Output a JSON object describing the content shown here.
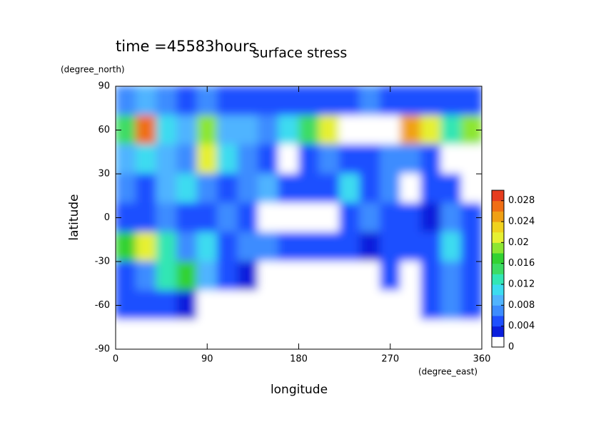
{
  "chart_data": {
    "type": "heatmap",
    "title": "surface stress",
    "subtitle": "time =45583hours",
    "x_label": "longitude",
    "y_label": "latitude",
    "x_unit": "(degree_east)",
    "y_unit": "(degree_north)",
    "xlim": [
      0,
      360
    ],
    "ylim": [
      -90,
      90
    ],
    "xticks": [
      0,
      90,
      180,
      270,
      360
    ],
    "yticks": [
      90,
      60,
      30,
      0,
      -30,
      -60,
      -90
    ],
    "x": [
      10,
      30,
      50,
      70,
      90,
      110,
      130,
      150,
      170,
      190,
      210,
      230,
      250,
      270,
      290,
      310,
      330,
      350
    ],
    "y": [
      80,
      60,
      40,
      20,
      0,
      -20,
      -40,
      -60,
      -80
    ],
    "z": [
      [
        0.006,
        0.008,
        0.006,
        0.005,
        0.006,
        0.005,
        0.005,
        0.004,
        0.004,
        0.004,
        0.005,
        0.005,
        0.006,
        0.005,
        0.005,
        0.005,
        0.004,
        0.004
      ],
      [
        0.014,
        0.026,
        0.01,
        0.008,
        0.018,
        0.008,
        0.008,
        0.006,
        0.01,
        0.014,
        0.02,
        0.034,
        0.034,
        0.034,
        0.024,
        0.02,
        0.012,
        0.018
      ],
      [
        0.008,
        0.01,
        0.008,
        0.006,
        0.02,
        0.01,
        0.006,
        0.004,
        0.001,
        0.005,
        0.006,
        0.005,
        0.004,
        0.006,
        0.006,
        0.005,
        0.001,
        0.001
      ],
      [
        0.006,
        0.004,
        0.008,
        0.01,
        0.006,
        0.005,
        0.006,
        0.008,
        0.004,
        0.005,
        0.004,
        0.01,
        0.004,
        0.006,
        0.001,
        0.004,
        0.004,
        0.001
      ],
      [
        0.004,
        0.005,
        0.006,
        0.004,
        0.005,
        0.006,
        0.004,
        0.001,
        0.001,
        0.001,
        0.001,
        0.004,
        0.006,
        0.005,
        0.004,
        0.003,
        0.006,
        0.004
      ],
      [
        0.016,
        0.02,
        0.012,
        0.006,
        0.01,
        0.004,
        0.006,
        0.006,
        0.005,
        0.004,
        0.005,
        0.004,
        0.003,
        0.004,
        0.005,
        0.004,
        0.01,
        0.004
      ],
      [
        0.004,
        0.006,
        0.012,
        0.016,
        0.008,
        0.004,
        0.003,
        0.001,
        0.001,
        0.001,
        0.001,
        0.001,
        0.001,
        0.004,
        0.001,
        0.004,
        0.006,
        0.004
      ],
      [
        0.004,
        0.004,
        0.004,
        0.003,
        0.001,
        0.001,
        0.001,
        0.001,
        0.001,
        0.001,
        0.001,
        0.001,
        0.001,
        0.001,
        0.001,
        0.004,
        0.006,
        0.004
      ],
      [
        0,
        0,
        0,
        0,
        0,
        0,
        0,
        0,
        0,
        0,
        0,
        0,
        0,
        0,
        0,
        0,
        0,
        0
      ]
    ],
    "zlim": [
      0,
      0.03
    ],
    "zticks": [
      0,
      0.004,
      0.008,
      0.012,
      0.016,
      0.02,
      0.024,
      0.028
    ],
    "colors": [
      "#ffffff",
      "#0a1edc",
      "#1e50ff",
      "#3c8cff",
      "#50b4ff",
      "#3cdcf0",
      "#32e6b4",
      "#3cdc64",
      "#32d232",
      "#8ce632",
      "#e6f032",
      "#f0d21e",
      "#f0a014",
      "#f06e14",
      "#e63c1e"
    ],
    "over_color": "#ffffff"
  }
}
